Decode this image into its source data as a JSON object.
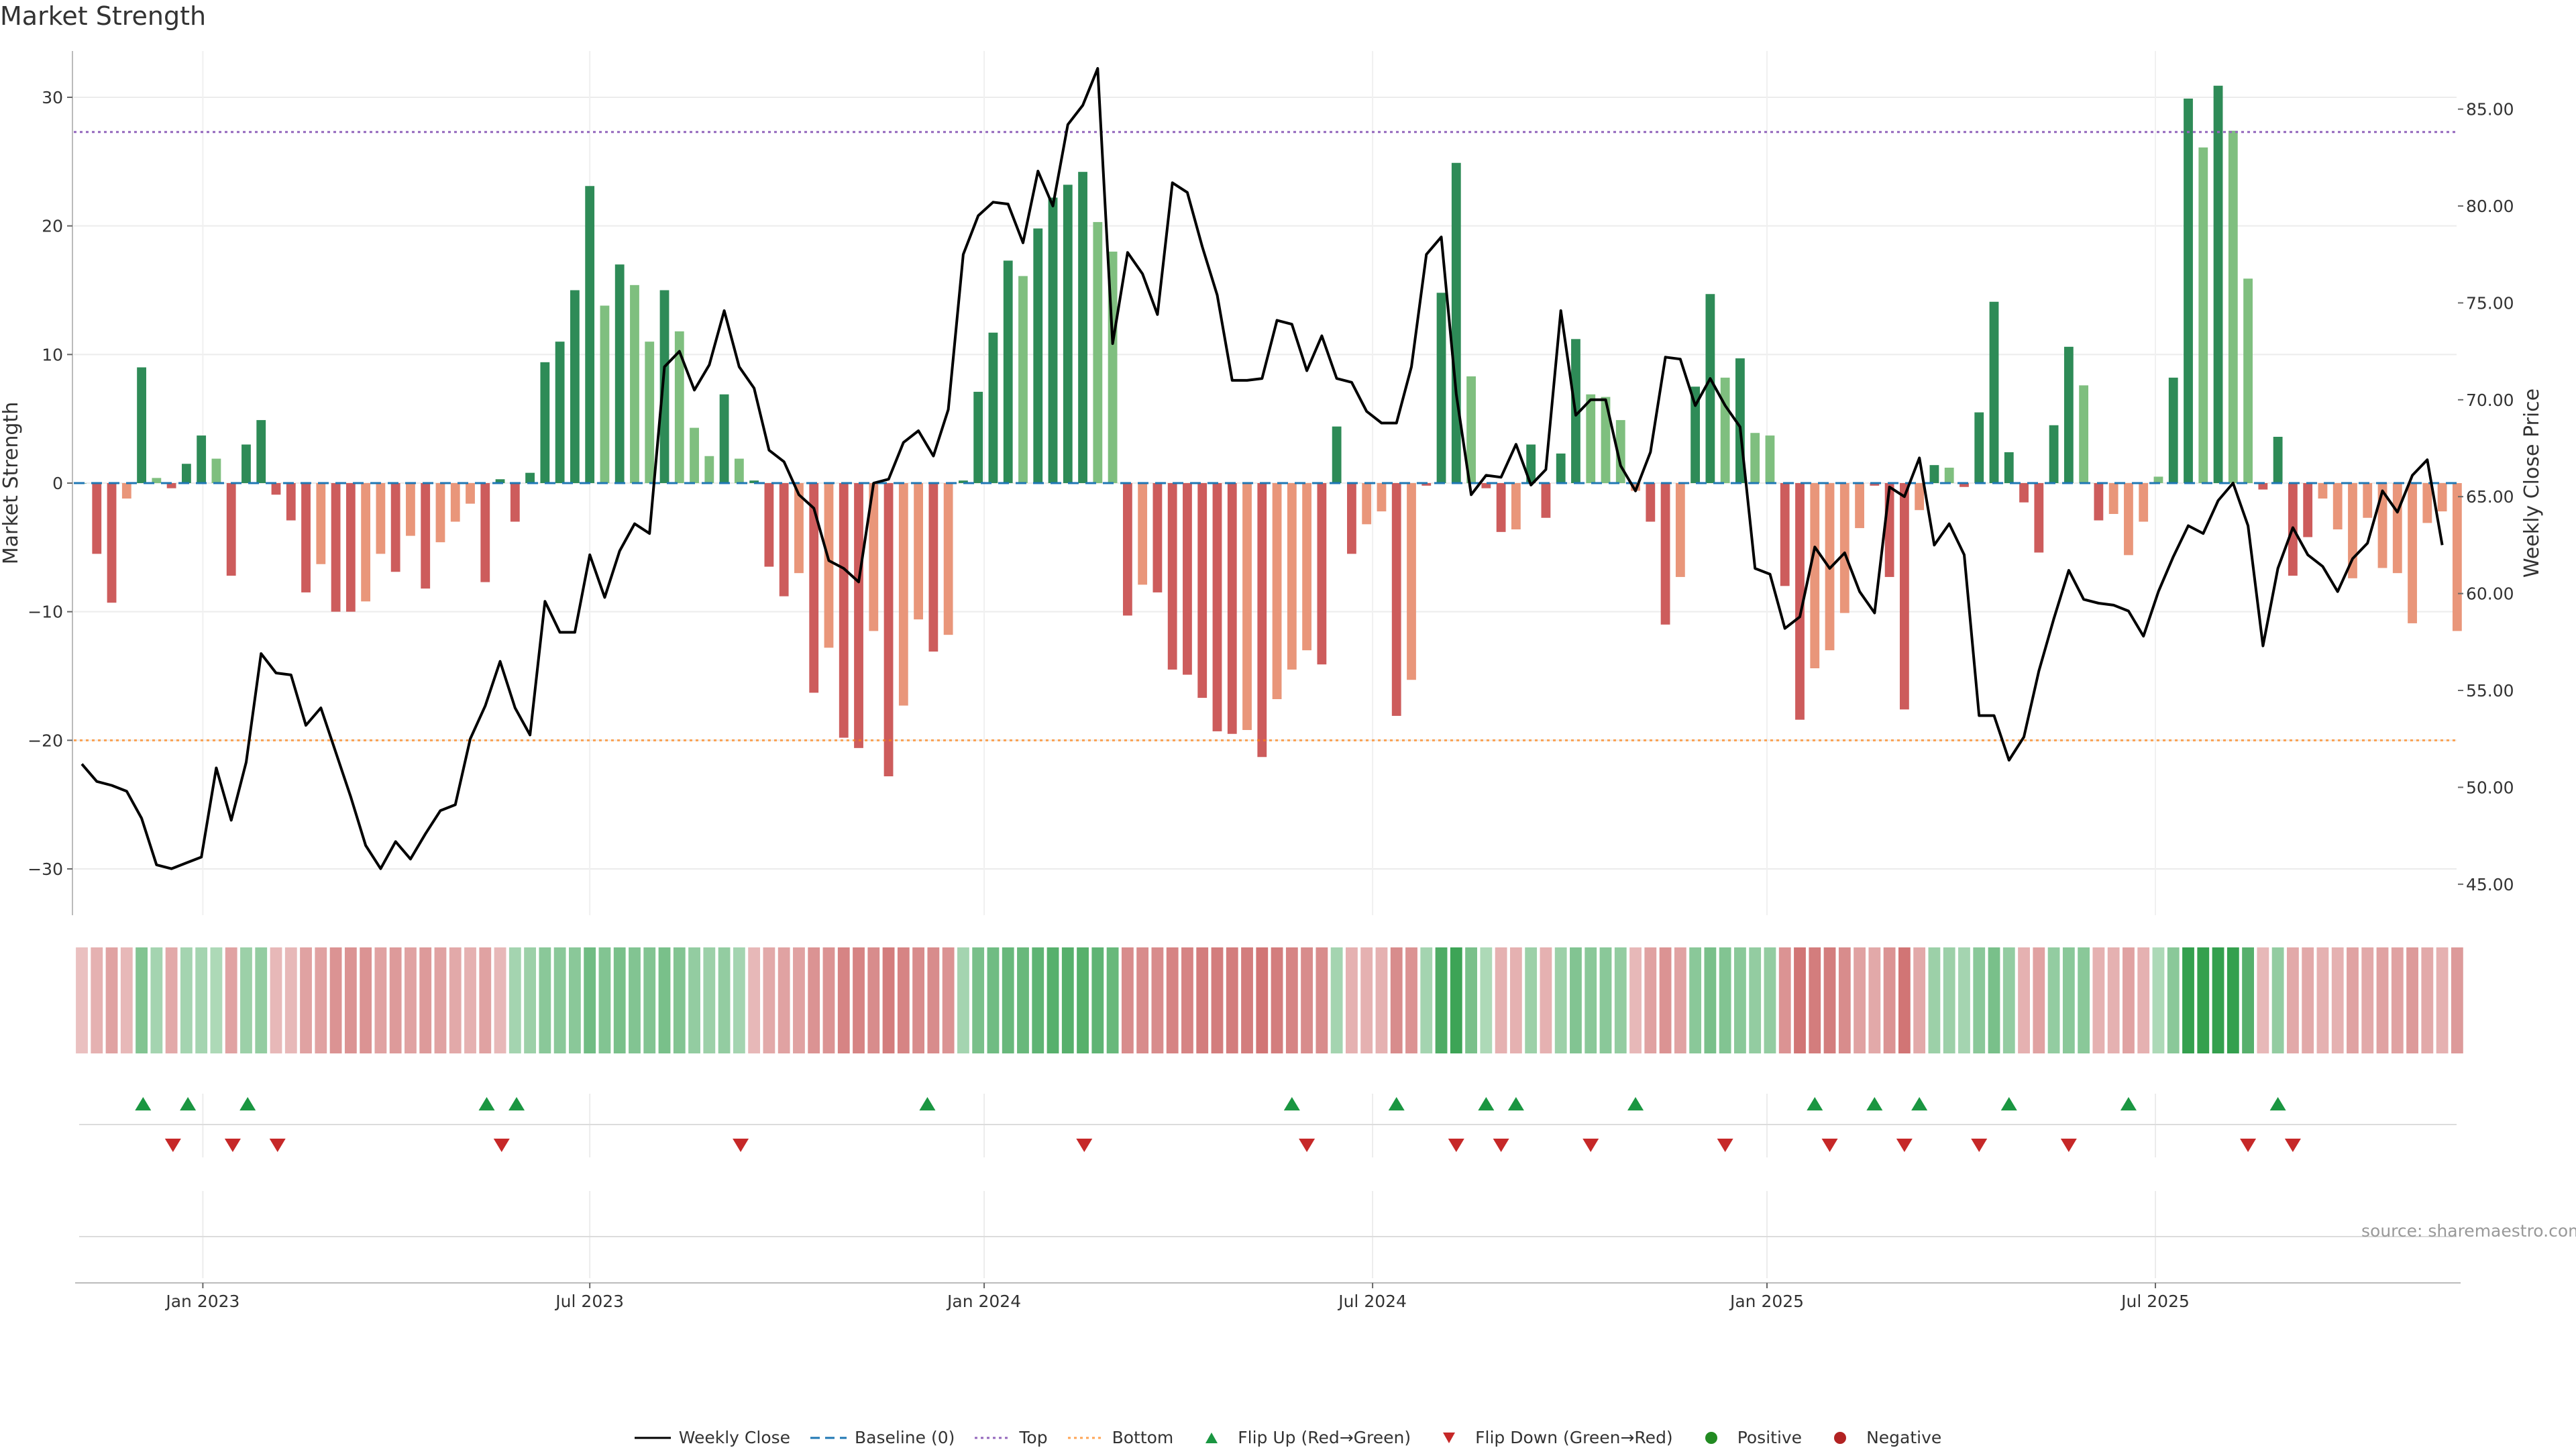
{
  "title": "Market Strength",
  "source_text": "source: sharemaestro.com",
  "legend": {
    "weekly_close": "Weekly Close",
    "baseline": "Baseline (0)",
    "top": "Top",
    "bottom": "Bottom",
    "flip_up": "Flip Up (Red→Green)",
    "flip_down": "Flip Down (Green→Red)",
    "positive": "Positive",
    "negative": "Negative"
  },
  "colors": {
    "green_dark": "#2e8b57",
    "green_light": "#7fbf7f",
    "red_dark": "#cd5c5c",
    "red_light": "#e9967a",
    "line": "#000000",
    "baseline": "#1f77b4",
    "top": "#9467bd",
    "bottom": "#ff7f0e",
    "flip_up": "#1a9641",
    "flip_down": "#c62828",
    "positive": "#228b22",
    "negative": "#b22222"
  },
  "chart_data": {
    "type": "bar",
    "title": "Market Strength",
    "xlabel": "",
    "ylabel": "Market Strength",
    "y2label": "Weekly Close Price",
    "ylim": [
      -33.6,
      33.6
    ],
    "y2lim": [
      43.4,
      88.0
    ],
    "yticks": [
      "30",
      "20",
      "10",
      "0",
      "−10",
      "−20",
      "−30"
    ],
    "yticks_values": [
      30,
      20,
      10,
      0,
      -10,
      -20,
      -30
    ],
    "y2ticks": [
      "85.00",
      "80.00",
      "75.00",
      "70.00",
      "65.00",
      "60.00",
      "55.00",
      "50.00",
      "45.00"
    ],
    "y2ticks_values": [
      85,
      80,
      75,
      70,
      65,
      60,
      55,
      50,
      45
    ],
    "xticks": [
      "Jan 2023",
      "Jul 2023",
      "Jan 2024",
      "Jul 2024",
      "Jan 2025",
      "Jul 2025"
    ],
    "xticks_week": [
      8.1,
      34.0,
      60.4,
      86.4,
      112.8,
      138.8
    ],
    "top_line": 27.3,
    "bottom_line": -20.0,
    "strength": [
      0,
      -5.5,
      -9.3,
      -1.2,
      9.0,
      0.4,
      -0.4,
      1.5,
      3.7,
      1.9,
      -7.2,
      3.0,
      4.9,
      -0.9,
      -2.9,
      -8.5,
      -6.3,
      -10.0,
      -10.0,
      -9.2,
      -5.5,
      -6.9,
      -4.1,
      -8.2,
      -4.6,
      -3.0,
      -1.6,
      -7.7,
      0.3,
      -3.0,
      0.8,
      9.4,
      11.0,
      15.0,
      23.1,
      13.8,
      17.0,
      15.4,
      11.0,
      15.0,
      11.8,
      4.3,
      2.1,
      6.9,
      1.9,
      0.2,
      -6.5,
      -8.8,
      -7.0,
      -16.3,
      -12.8,
      -19.8,
      -20.6,
      -11.5,
      -22.8,
      -17.3,
      -10.6,
      -13.1,
      -11.8,
      0.2,
      7.1,
      11.7,
      17.3,
      16.1,
      19.8,
      22.2,
      23.2,
      24.2,
      20.3,
      18.0,
      -10.3,
      -7.9,
      -8.5,
      -14.5,
      -14.9,
      -16.7,
      -19.3,
      -19.5,
      -19.2,
      -21.3,
      -16.8,
      -14.5,
      -13.0,
      -14.1,
      4.4,
      -5.5,
      -3.2,
      -2.2,
      -18.1,
      -15.3,
      -0.2,
      14.8,
      24.9,
      8.3,
      -0.4,
      -3.8,
      -3.6,
      3.0,
      -2.7,
      2.3,
      11.2,
      6.9,
      6.7,
      4.9,
      -0.6,
      -3.0,
      -11.0,
      -7.3,
      7.5,
      14.7,
      8.2,
      9.7,
      3.9,
      3.7,
      -8.0,
      -18.4,
      -14.4,
      -13.0,
      -10.1,
      -3.5,
      -0.2,
      -7.3,
      -17.6,
      -2.1,
      1.4,
      1.2,
      -0.3,
      5.5,
      14.1,
      2.4,
      -1.5,
      -5.4,
      4.5,
      10.6,
      7.6,
      -2.9,
      -2.4,
      -5.6,
      -3.0,
      0.5,
      8.2,
      29.9,
      26.1,
      30.9,
      27.4,
      15.9,
      -0.5,
      3.6,
      -7.2,
      -4.2,
      -1.2,
      -3.6,
      -7.4,
      -2.7,
      -6.6,
      -7.0,
      -10.9,
      -3.1,
      -2.2,
      -11.5
    ],
    "bar_shade": [
      "d",
      "d",
      "d",
      "l",
      "d",
      "l",
      "d",
      "d",
      "d",
      "l",
      "d",
      "d",
      "d",
      "d",
      "d",
      "d",
      "l",
      "d",
      "d",
      "l",
      "l",
      "d",
      "l",
      "d",
      "l",
      "l",
      "l",
      "d",
      "d",
      "d",
      "d",
      "d",
      "d",
      "d",
      "d",
      "l",
      "d",
      "l",
      "l",
      "d",
      "l",
      "l",
      "l",
      "d",
      "l",
      "d",
      "d",
      "d",
      "l",
      "d",
      "l",
      "d",
      "d",
      "l",
      "d",
      "l",
      "l",
      "d",
      "l",
      "d",
      "d",
      "d",
      "d",
      "l",
      "d",
      "d",
      "d",
      "d",
      "l",
      "l",
      "d",
      "l",
      "d",
      "d",
      "d",
      "d",
      "d",
      "d",
      "l",
      "d",
      "l",
      "l",
      "l",
      "d",
      "d",
      "d",
      "l",
      "l",
      "d",
      "l",
      "d",
      "d",
      "d",
      "l",
      "d",
      "d",
      "l",
      "d",
      "d",
      "d",
      "d",
      "l",
      "l",
      "l",
      "l",
      "d",
      "d",
      "l",
      "d",
      "d",
      "l",
      "d",
      "l",
      "l",
      "d",
      "d",
      "l",
      "l",
      "l",
      "l",
      "d",
      "d",
      "d",
      "l",
      "d",
      "l",
      "d",
      "d",
      "d",
      "d",
      "d",
      "d",
      "d",
      "d",
      "l",
      "d",
      "l",
      "l",
      "l",
      "l",
      "d",
      "d",
      "l",
      "d",
      "l",
      "l",
      "d",
      "d",
      "d",
      "d",
      "l",
      "l",
      "l",
      "l",
      "l",
      "l",
      "l",
      "l",
      "l",
      "l",
      "l",
      "l",
      "l"
    ],
    "weekly_close": [
      51.2,
      50.3,
      50.1,
      49.8,
      48.4,
      46.0,
      45.8,
      46.1,
      46.4,
      51.0,
      48.3,
      51.3,
      56.9,
      55.9,
      55.8,
      53.2,
      54.1,
      51.8,
      49.5,
      47.0,
      45.8,
      47.2,
      46.3,
      47.6,
      48.8,
      49.1,
      52.5,
      54.2,
      56.5,
      54.1,
      52.7,
      59.6,
      58.0,
      58.0,
      62.0,
      59.8,
      62.2,
      63.6,
      63.1,
      71.7,
      72.5,
      70.5,
      71.8,
      74.6,
      71.7,
      70.6,
      67.4,
      66.8,
      65.1,
      64.4,
      61.7,
      61.3,
      60.6,
      65.7,
      65.9,
      67.8,
      68.4,
      67.1,
      69.5,
      77.5,
      79.5,
      80.2,
      80.1,
      78.1,
      81.8,
      80.0,
      84.2,
      85.2,
      87.1,
      72.9,
      77.6,
      76.5,
      74.4,
      81.2,
      80.7,
      77.9,
      75.4,
      71.0,
      71.0,
      71.1,
      74.1,
      73.9,
      71.5,
      73.3,
      71.1,
      70.9,
      69.4,
      68.8,
      68.8,
      71.7,
      77.5,
      78.4,
      70.3,
      65.1,
      66.1,
      66.0,
      67.7,
      65.6,
      66.4,
      74.6,
      69.2,
      70.0,
      70.0,
      66.6,
      65.3,
      67.3,
      72.2,
      72.1,
      69.7,
      71.1,
      69.7,
      68.6,
      61.3,
      61.0,
      58.2,
      58.8,
      62.4,
      61.3,
      62.1,
      60.1,
      59.0,
      65.5,
      65.0,
      67.0,
      62.5,
      63.6,
      62.0,
      53.7,
      53.7,
      51.4,
      52.6,
      56.0,
      58.7,
      61.2,
      59.7,
      59.5,
      59.4,
      59.1,
      57.8,
      60.1,
      61.9,
      63.5,
      63.1,
      64.8,
      65.7,
      63.5,
      57.3,
      61.3,
      63.4,
      62.0,
      61.4,
      60.1,
      61.8,
      62.6,
      65.3,
      64.2,
      66.1,
      66.9,
      62.5
    ],
    "heat": [
      -0.25,
      -0.35,
      -0.45,
      -0.3,
      0.55,
      0.35,
      -0.4,
      0.35,
      0.35,
      0.3,
      -0.45,
      0.4,
      0.45,
      -0.3,
      -0.3,
      -0.45,
      -0.45,
      -0.55,
      -0.55,
      -0.55,
      -0.45,
      -0.5,
      -0.45,
      -0.5,
      -0.45,
      -0.4,
      -0.35,
      -0.45,
      -0.3,
      0.35,
      0.4,
      0.5,
      0.5,
      0.5,
      0.65,
      0.55,
      0.6,
      0.55,
      0.55,
      0.6,
      0.55,
      0.45,
      0.4,
      0.45,
      0.35,
      -0.3,
      -0.4,
      -0.45,
      -0.45,
      -0.55,
      -0.55,
      -0.65,
      -0.65,
      -0.6,
      -0.7,
      -0.65,
      -0.6,
      -0.6,
      -0.55,
      0.35,
      0.6,
      0.65,
      0.7,
      0.7,
      0.75,
      0.8,
      0.8,
      0.8,
      0.75,
      0.7,
      -0.6,
      -0.6,
      -0.6,
      -0.65,
      -0.65,
      -0.7,
      -0.7,
      -0.7,
      -0.7,
      -0.75,
      -0.7,
      -0.65,
      -0.6,
      -0.6,
      0.35,
      -0.35,
      -0.35,
      -0.35,
      -0.6,
      -0.55,
      0.35,
      0.85,
      0.95,
      0.6,
      0.3,
      -0.35,
      -0.35,
      0.4,
      -0.35,
      0.4,
      0.55,
      0.5,
      0.5,
      0.45,
      -0.3,
      -0.45,
      -0.55,
      -0.45,
      0.5,
      0.6,
      0.55,
      0.5,
      0.45,
      0.45,
      -0.55,
      -0.75,
      -0.7,
      -0.7,
      -0.6,
      -0.45,
      -0.4,
      -0.55,
      -0.75,
      -0.4,
      0.4,
      0.4,
      0.35,
      0.5,
      0.6,
      0.45,
      -0.35,
      -0.45,
      0.45,
      0.5,
      0.5,
      -0.35,
      -0.35,
      -0.45,
      -0.35,
      0.3,
      0.5,
      1.0,
      1.0,
      1.0,
      1.0,
      0.8,
      -0.3,
      0.45,
      -0.4,
      -0.4,
      -0.35,
      -0.35,
      -0.45,
      -0.4,
      -0.45,
      -0.45,
      -0.5,
      -0.4,
      -0.35,
      -0.5
    ],
    "flip_up": [
      4.1,
      7.1,
      11.1,
      27.1,
      29.1,
      56.6,
      81.0,
      88.0,
      94.0,
      96.0,
      104.0,
      116.0,
      120.0,
      123.0,
      129.0,
      137.0,
      147.0
    ],
    "flip_down": [
      6.1,
      10.1,
      13.1,
      28.1,
      44.1,
      67.1,
      82.0,
      92.0,
      95.0,
      101.0,
      110.0,
      117.0,
      122.0,
      127.0,
      133.0,
      145.0,
      148.0
    ]
  }
}
